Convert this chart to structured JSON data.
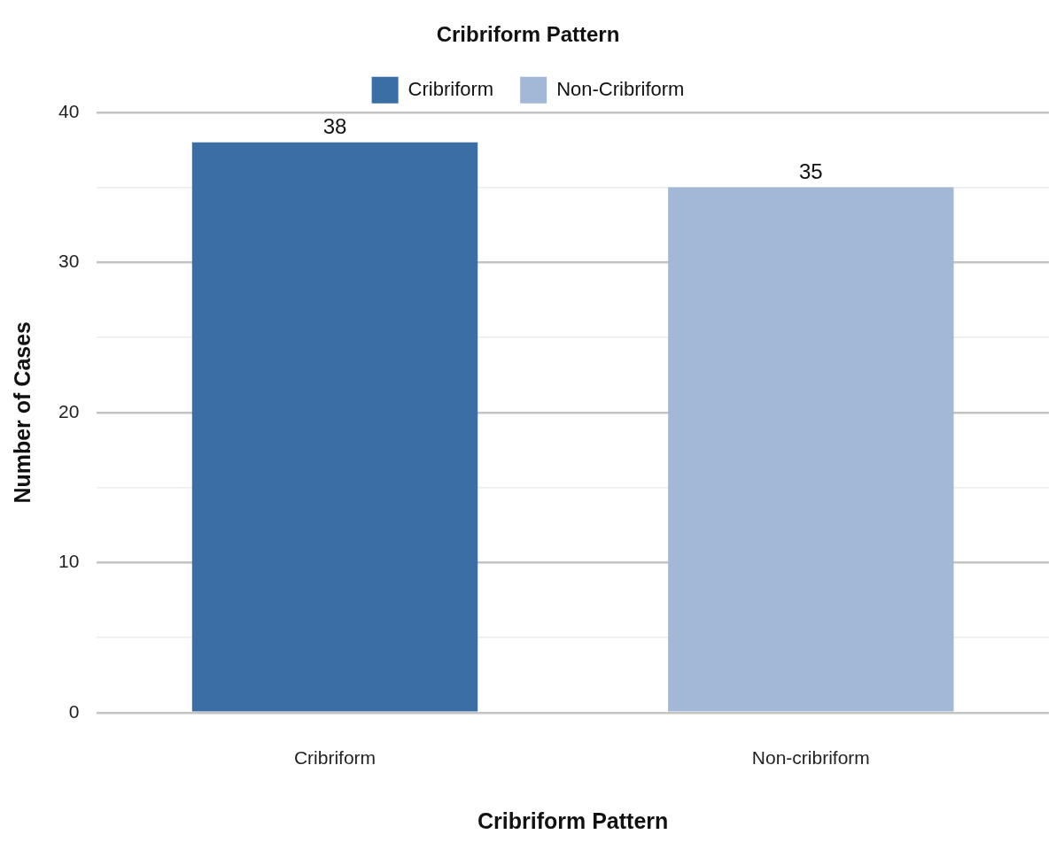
{
  "chart_data": {
    "type": "bar",
    "xlabel": "Cribriform Pattern",
    "ylabel": "Number of Cases",
    "legend_title": "Cribriform Pattern",
    "categories": [
      "Cribriform",
      "Non-cribriform"
    ],
    "series": [
      {
        "name": "Cribriform",
        "color": "#3a6ea5",
        "values": [
          38,
          null
        ]
      },
      {
        "name": "Non-Cribriform",
        "color": "#a3b8d6",
        "values": [
          null,
          35
        ]
      }
    ],
    "ylim": [
      0,
      40
    ],
    "yticks": [
      0,
      {
        "value": 5,
        "label": null
      },
      10,
      {
        "value": 15,
        "label": null
      },
      20,
      {
        "value": 25,
        "label": null
      },
      30,
      {
        "value": 35,
        "label": null
      },
      40
    ],
    "grid": "y",
    "legend": "top",
    "data_labels": true
  }
}
